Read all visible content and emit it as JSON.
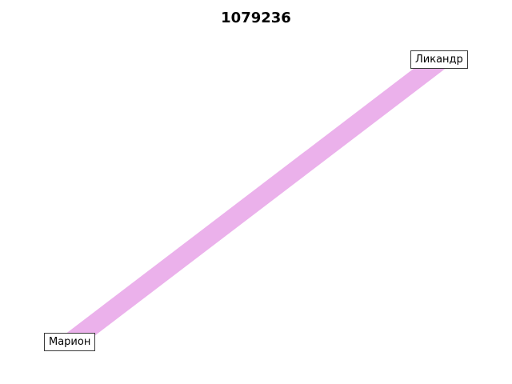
{
  "title": "1079236",
  "nodes": [
    {
      "id": "a",
      "label": "Марион"
    },
    {
      "id": "b",
      "label": "Ликандр"
    }
  ],
  "edges": [
    {
      "source": "a",
      "target": "b",
      "color": "#ebb1eb"
    }
  ]
}
